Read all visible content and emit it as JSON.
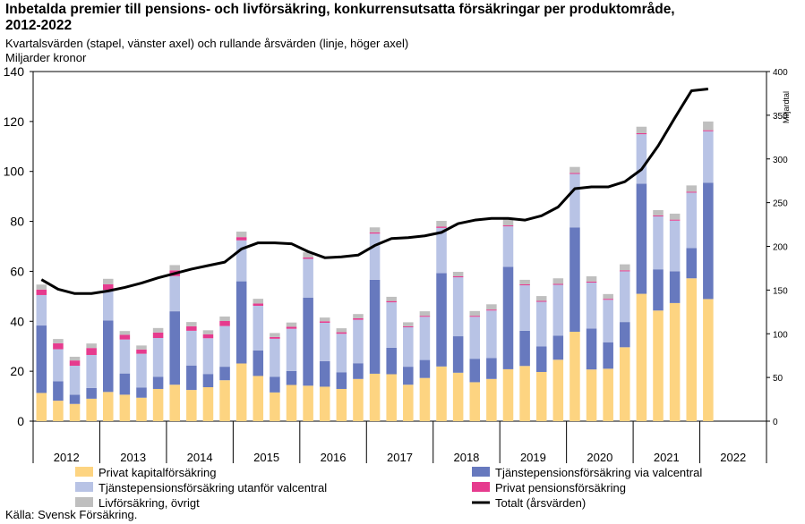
{
  "title": "Inbetalda premier till pensions- och livförsäkring, konkurrensutsatta försäkringar per produktområde, 2012-2022",
  "subtitle": "Kvartalsvärden (stapel, vänster axel) och rullande årsvärden (linje, höger axel)",
  "unit": "Miljarder kronor",
  "source": "Källa: Svensk Försäkring.",
  "chart_data": {
    "type": "bar",
    "stacked": true,
    "categories": [
      "2012 Q1",
      "2012 Q2",
      "2012 Q3",
      "2012 Q4",
      "2013 Q1",
      "2013 Q2",
      "2013 Q3",
      "2013 Q4",
      "2014 Q1",
      "2014 Q2",
      "2014 Q3",
      "2014 Q4",
      "2015 Q1",
      "2015 Q2",
      "2015 Q3",
      "2015 Q4",
      "2016 Q1",
      "2016 Q2",
      "2016 Q3",
      "2016 Q4",
      "2017 Q1",
      "2017 Q2",
      "2017 Q3",
      "2017 Q4",
      "2018 Q1",
      "2018 Q2",
      "2018 Q3",
      "2018 Q4",
      "2019 Q1",
      "2019 Q2",
      "2019 Q3",
      "2019 Q4",
      "2020 Q1",
      "2020 Q2",
      "2020 Q3",
      "2020 Q4",
      "2021 Q1",
      "2021 Q2",
      "2021 Q3",
      "2021 Q4",
      "2022 Q1"
    ],
    "year_labels": [
      "2012",
      "2013",
      "2014",
      "2015",
      "2016",
      "2017",
      "2018",
      "2019",
      "2020",
      "2021",
      "2022"
    ],
    "ylim": [
      0,
      140
    ],
    "yticks": [
      0,
      20,
      40,
      60,
      80,
      100,
      120,
      140
    ],
    "y2lim": [
      0,
      400
    ],
    "y2ticks": [
      0,
      50,
      100,
      150,
      200,
      250,
      300,
      350,
      400
    ],
    "y2label": "Miljardtal",
    "series": [
      {
        "name": "Privat kapitalförsäkring",
        "color": "#FDD481",
        "values": [
          11.3,
          8.2,
          6.9,
          9.0,
          11.7,
          10.6,
          9.4,
          12.9,
          14.6,
          12.5,
          13.6,
          16.4,
          23.1,
          18.1,
          11.5,
          14.5,
          14.2,
          13.8,
          12.9,
          16.9,
          19.0,
          18.8,
          14.6,
          17.3,
          21.9,
          19.4,
          15.6,
          16.9,
          20.8,
          22.1,
          19.7,
          24.6,
          35.8,
          20.7,
          21.0,
          29.6,
          51.0,
          44.3,
          47.3,
          57.2,
          48.9
        ]
      },
      {
        "name": "Tjänstepensionsförsäkring via valcentral",
        "color": "#6779BE",
        "values": [
          27.0,
          7.8,
          3.7,
          4.3,
          28.6,
          8.5,
          4.1,
          4.9,
          29.4,
          9.8,
          5.3,
          5.4,
          32.9,
          10.2,
          6.3,
          5.6,
          35.3,
          10.2,
          6.7,
          6.3,
          37.6,
          10.6,
          7.2,
          7.2,
          37.4,
          14.6,
          9.4,
          8.4,
          41.0,
          14.1,
          10.2,
          9.6,
          41.8,
          16.4,
          10.6,
          10.1,
          44.1,
          16.5,
          12.7,
          12.1,
          46.6
        ]
      },
      {
        "name": "Tjänstepensionsförsäkring utanför valcentral",
        "color": "#B8C3E5",
        "values": [
          12.2,
          12.8,
          11.6,
          13.2,
          12.3,
          13.6,
          13.5,
          15.5,
          14.1,
          13.9,
          14.3,
          16.3,
          16.4,
          17.9,
          15.2,
          16.9,
          15.5,
          15.4,
          15.4,
          17.4,
          18.5,
          18.2,
          15.8,
          17.3,
          18.1,
          23.6,
          16.8,
          19.0,
          16.2,
          18.2,
          17.9,
          20.4,
          21.4,
          18.4,
          17.0,
          20.3,
          19.8,
          21.2,
          20.3,
          22.2,
          20.6
        ]
      },
      {
        "name": "Privat pensionsförsäkring",
        "color": "#E63B8E",
        "values": [
          2.2,
          2.4,
          2.1,
          2.8,
          2.2,
          1.9,
          1.7,
          2.2,
          2.3,
          1.8,
          1.6,
          2.0,
          1.3,
          0.9,
          0.7,
          0.8,
          0.6,
          0.6,
          0.6,
          0.6,
          0.5,
          0.5,
          0.4,
          0.4,
          0.5,
          0.4,
          0.4,
          0.4,
          0.4,
          0.4,
          0.4,
          0.4,
          0.4,
          0.4,
          0.4,
          0.4,
          0.4,
          0.4,
          0.4,
          0.4,
          0.4
        ]
      },
      {
        "name": "Livförsäkring, övrigt",
        "color": "#BFBFBF",
        "values": [
          2.0,
          1.7,
          1.5,
          1.8,
          2.2,
          1.5,
          1.6,
          1.8,
          2.1,
          1.7,
          1.6,
          1.8,
          2.2,
          1.9,
          1.6,
          1.7,
          2.0,
          1.5,
          1.6,
          1.7,
          2.0,
          1.7,
          1.6,
          1.8,
          2.3,
          1.8,
          1.9,
          2.1,
          2.6,
          1.8,
          1.9,
          2.2,
          2.4,
          2.1,
          1.9,
          2.4,
          2.6,
          2.1,
          2.4,
          2.5,
          3.5
        ]
      },
      {
        "name": "Totalt (årsvärden)",
        "type": "line",
        "axis": "right",
        "color": "#000000",
        "values": [
          162,
          151,
          146,
          146,
          149,
          153,
          158,
          164,
          169,
          174,
          178,
          182,
          197,
          204,
          204,
          203,
          194,
          187,
          188,
          190,
          201,
          209,
          210,
          212,
          216,
          226,
          230,
          232,
          232,
          230,
          235,
          245,
          266,
          268,
          268,
          274,
          288,
          315,
          347,
          378,
          380
        ]
      }
    ],
    "legend": [
      {
        "label": "Privat kapitalförsäkring",
        "color": "#FDD481",
        "kind": "box"
      },
      {
        "label": "Tjänstepensionsförsäkring via valcentral",
        "color": "#6779BE",
        "kind": "box"
      },
      {
        "label": "Tjänstepensionsförsäkring utanför valcentral",
        "color": "#B8C3E5",
        "kind": "box"
      },
      {
        "label": "Privat pensionsförsäkring",
        "color": "#E63B8E",
        "kind": "box"
      },
      {
        "label": "Livförsäkring, övrigt",
        "color": "#BFBFBF",
        "kind": "box"
      },
      {
        "label": "Totalt (årsvärden)",
        "color": "#000000",
        "kind": "line"
      }
    ],
    "legend_placement": "bottom"
  }
}
